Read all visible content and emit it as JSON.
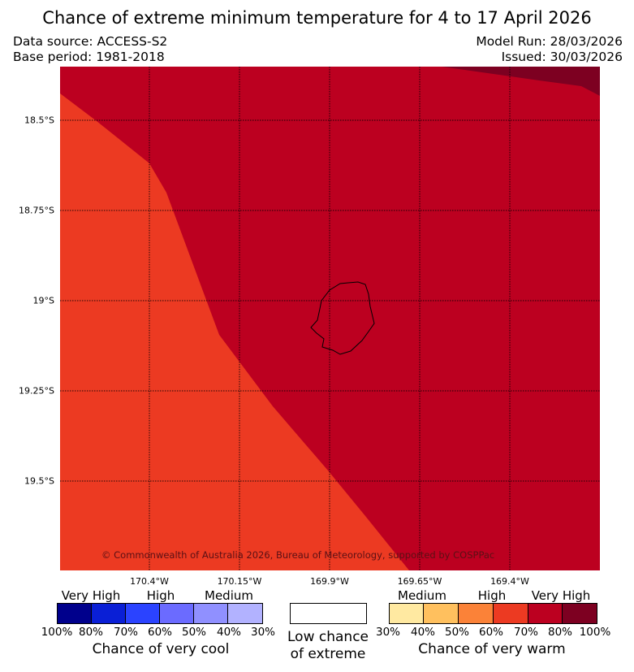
{
  "title": "Chance of extreme minimum temperature for 4 to 17 April 2026",
  "data_source": "Data source: ACCESS-S2",
  "base_period": "Base period: 1981-2018",
  "model_run": "Model Run: 28/03/2026",
  "issued": "Issued: 30/03/2026",
  "latitude_labels": [
    "18.5°S",
    "18.75°S",
    "19°S",
    "19.25°S",
    "19.5°S"
  ],
  "longitude_labels": [
    "170.4°W",
    "170.15°W",
    "169.9°W",
    "169.65°W",
    "169.4°W"
  ],
  "copyright": "© Commonwealth of Australia 2026, Bureau of Meteorology, supported by COSPPac",
  "legend": {
    "cool": {
      "levels": [
        "Very High",
        "High",
        "Medium"
      ],
      "percents": [
        "100%",
        "80%",
        "70%",
        "60%",
        "50%",
        "40%",
        "30%"
      ],
      "colors": [
        "#00008c",
        "#0a1fd6",
        "#2b43ff",
        "#6b6bff",
        "#9090ff",
        "#b2b2ff"
      ],
      "caption": "Chance of very cool"
    },
    "neutral": {
      "caption_line1": "Low chance",
      "caption_line2": "of extreme",
      "color": "#ffffff"
    },
    "warm": {
      "levels": [
        "Medium",
        "High",
        "Very High"
      ],
      "percents": [
        "30%",
        "40%",
        "50%",
        "60%",
        "70%",
        "80%",
        "100%"
      ],
      "colors": [
        "#ffe9a1",
        "#ffc05e",
        "#fb8238",
        "#ec3a22",
        "#bc0020",
        "#7d0021"
      ],
      "caption": "Chance of very warm"
    }
  },
  "map_colors": {
    "high_60_70": "#ec3a22",
    "very_high_70_80": "#bc0020",
    "very_high_80_100": "#7d0021"
  }
}
